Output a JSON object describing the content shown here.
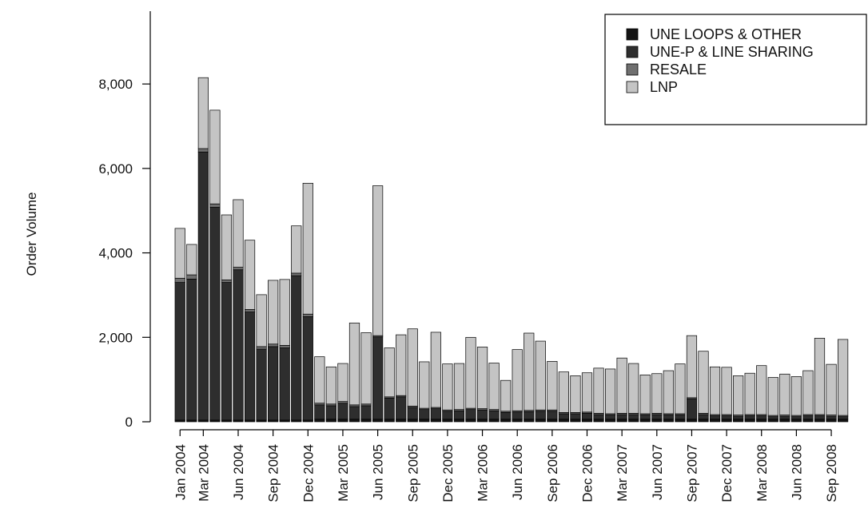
{
  "chart_data": {
    "type": "bar",
    "stacked": true,
    "title": "",
    "xlabel": "",
    "ylabel": "Order Volume",
    "ylim": [
      0,
      9800
    ],
    "y_ticks": [
      0,
      2000,
      4000,
      6000,
      8000
    ],
    "y_tick_labels": [
      "0",
      "2,000",
      "4,000",
      "6,000",
      "8,000"
    ],
    "categories": [
      "Jan 2004",
      "Feb 2004",
      "Mar 2004",
      "Apr 2004",
      "May 2004",
      "Jun 2004",
      "Jul 2004",
      "Aug 2004",
      "Sep 2004",
      "Oct 2004",
      "Nov 2004",
      "Dec 2004",
      "Jan 2005",
      "Feb 2005",
      "Mar 2005",
      "Apr 2005",
      "May 2005",
      "Jun 2005",
      "Jul 2005",
      "Aug 2005",
      "Sep 2005",
      "Oct 2005",
      "Nov 2005",
      "Dec 2005",
      "Jan 2006",
      "Feb 2006",
      "Mar 2006",
      "Apr 2006",
      "May 2006",
      "Jun 2006",
      "Jul 2006",
      "Aug 2006",
      "Sep 2006",
      "Oct 2006",
      "Nov 2006",
      "Dec 2006",
      "Jan 2007",
      "Feb 2007",
      "Mar 2007",
      "Apr 2007",
      "May 2007",
      "Jun 2007",
      "Jul 2007",
      "Aug 2007",
      "Sep 2007",
      "Oct 2007",
      "Nov 2007",
      "Dec 2007",
      "Jan 2008",
      "Feb 2008",
      "Mar 2008",
      "Apr 2008",
      "May 2008",
      "Jun 2008",
      "Jul 2008",
      "Aug 2008",
      "Sep 2008",
      "Oct 2008"
    ],
    "x_tick_labels": [
      {
        "index": 0,
        "label": "Jan 2004"
      },
      {
        "index": 2,
        "label": "Mar 2004"
      },
      {
        "index": 5,
        "label": "Jun 2004"
      },
      {
        "index": 8,
        "label": "Sep 2004"
      },
      {
        "index": 11,
        "label": "Dec 2004"
      },
      {
        "index": 14,
        "label": "Mar 2005"
      },
      {
        "index": 17,
        "label": "Jun 2005"
      },
      {
        "index": 20,
        "label": "Sep 2005"
      },
      {
        "index": 23,
        "label": "Dec 2005"
      },
      {
        "index": 26,
        "label": "Mar 2006"
      },
      {
        "index": 29,
        "label": "Jun 2006"
      },
      {
        "index": 32,
        "label": "Sep 2006"
      },
      {
        "index": 35,
        "label": "Dec 2006"
      },
      {
        "index": 38,
        "label": "Mar 2007"
      },
      {
        "index": 41,
        "label": "Jun 2007"
      },
      {
        "index": 44,
        "label": "Sep 2007"
      },
      {
        "index": 47,
        "label": "Dec 2007"
      },
      {
        "index": 50,
        "label": "Mar 2008"
      },
      {
        "index": 53,
        "label": "Jun 2008"
      },
      {
        "index": 56,
        "label": "Sep 2008"
      }
    ],
    "series": [
      {
        "name": "UNE LOOPS & OTHER",
        "color": "#141414",
        "values": [
          40,
          40,
          40,
          40,
          40,
          40,
          40,
          40,
          40,
          40,
          40,
          40,
          60,
          60,
          60,
          60,
          60,
          60,
          60,
          60,
          60,
          60,
          60,
          60,
          60,
          60,
          60,
          60,
          60,
          60,
          60,
          60,
          60,
          60,
          60,
          60,
          60,
          60,
          60,
          60,
          60,
          60,
          60,
          60,
          60,
          60,
          60,
          60,
          60,
          60,
          60,
          60,
          60,
          60,
          60,
          60,
          60,
          60
        ]
      },
      {
        "name": "UNE-P & LINE SHARING",
        "color": "#2e2e2e",
        "values": [
          3260,
          3340,
          6350,
          5040,
          3260,
          3560,
          2560,
          1680,
          1740,
          1710,
          3420,
          2450,
          340,
          320,
          380,
          300,
          320,
          1950,
          500,
          530,
          280,
          230,
          250,
          190,
          200,
          230,
          220,
          200,
          160,
          170,
          180,
          190,
          190,
          130,
          130,
          140,
          110,
          100,
          110,
          110,
          100,
          110,
          100,
          100,
          480,
          110,
          80,
          80,
          70,
          80,
          80,
          60,
          70,
          60,
          80,
          80,
          70,
          60
        ]
      },
      {
        "name": "RESALE",
        "color": "#707070",
        "values": [
          100,
          100,
          80,
          80,
          60,
          60,
          60,
          60,
          60,
          60,
          60,
          60,
          40,
          40,
          40,
          40,
          40,
          30,
          30,
          30,
          30,
          30,
          30,
          30,
          30,
          30,
          30,
          30,
          30,
          30,
          30,
          30,
          30,
          30,
          30,
          30,
          30,
          30,
          30,
          30,
          30,
          30,
          30,
          30,
          30,
          30,
          30,
          30,
          30,
          30,
          30,
          30,
          30,
          30,
          30,
          30,
          30,
          30
        ]
      },
      {
        "name": "LNP",
        "color": "#c4c4c4",
        "values": [
          1180,
          720,
          1680,
          2220,
          1540,
          1600,
          1640,
          1230,
          1510,
          1560,
          1120,
          3100,
          1100,
          880,
          900,
          1940,
          1690,
          3550,
          1160,
          1440,
          1830,
          1100,
          1780,
          1090,
          1090,
          1680,
          1460,
          1100,
          730,
          1450,
          1830,
          1630,
          1150,
          960,
          870,
          930,
          1070,
          1060,
          1310,
          1180,
          920,
          940,
          1020,
          1180,
          1470,
          1470,
          1130,
          1120,
          930,
          980,
          1160,
          900,
          970,
          920,
          1040,
          1810,
          1200,
          1800
        ]
      }
    ],
    "legend_position": "top-right",
    "grid": false
  }
}
